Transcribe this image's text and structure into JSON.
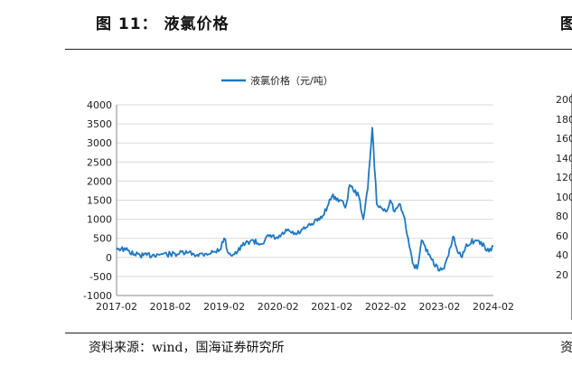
{
  "figure": {
    "title": "图 11： 液氯价格",
    "source": "资料来源：wind，国海证券研究所"
  },
  "colors": {
    "series": "#1f78c1",
    "grid": "#d9d9d9",
    "axis": "#888888"
  },
  "chart_data": {
    "type": "line",
    "title": "",
    "xlabel": "",
    "ylabel": "",
    "ylim": [
      -1000,
      4000
    ],
    "yticks": [
      -1000,
      -500,
      0,
      500,
      1000,
      1500,
      2000,
      2500,
      3000,
      3500,
      4000
    ],
    "xlim": [
      "2017-02",
      "2024-02"
    ],
    "xticks": [
      "2017-02",
      "2018-02",
      "2019-02",
      "2020-02",
      "2021-02",
      "2022-02",
      "2023-02",
      "2024-02"
    ],
    "grid": true,
    "legend": "top-center",
    "series": [
      {
        "name": "液氯价格（元/吨）",
        "x": [
          "2017-02",
          "2017-04",
          "2017-06",
          "2017-08",
          "2017-10",
          "2017-12",
          "2018-02",
          "2018-04",
          "2018-06",
          "2018-08",
          "2018-10",
          "2018-12",
          "2019-01",
          "2019-02",
          "2019-03",
          "2019-04",
          "2019-05",
          "2019-06",
          "2019-08",
          "2019-10",
          "2019-12",
          "2020-02",
          "2020-04",
          "2020-06",
          "2020-08",
          "2020-10",
          "2020-12",
          "2021-02",
          "2021-04",
          "2021-05",
          "2021-06",
          "2021-08",
          "2021-09",
          "2021-10",
          "2021-11",
          "2021-12",
          "2022-01",
          "2022-02",
          "2022-03",
          "2022-04",
          "2022-05",
          "2022-06",
          "2022-07",
          "2022-08",
          "2022-09",
          "2022-10",
          "2022-12",
          "2023-02",
          "2023-03",
          "2023-04",
          "2023-05",
          "2023-06",
          "2023-07",
          "2023-08",
          "2023-10",
          "2023-12",
          "2024-01",
          "2024-02"
        ],
        "values": [
          250,
          200,
          80,
          50,
          60,
          90,
          80,
          100,
          120,
          70,
          100,
          150,
          200,
          500,
          100,
          80,
          150,
          300,
          450,
          350,
          550,
          500,
          700,
          600,
          750,
          900,
          1100,
          1600,
          1500,
          1300,
          1900,
          1600,
          1000,
          1800,
          3400,
          1400,
          1300,
          1200,
          1500,
          1200,
          1400,
          1100,
          500,
          -150,
          -300,
          450,
          0,
          -350,
          -300,
          50,
          550,
          150,
          0,
          350,
          450,
          300,
          150,
          300
        ]
      }
    ]
  },
  "side_panel": {
    "title_fragment": "图",
    "source_fragment": "资料",
    "tick_labels": [
      "200",
      "180",
      "160",
      "140",
      "120",
      "100",
      "80",
      "60",
      "40",
      "20"
    ]
  }
}
